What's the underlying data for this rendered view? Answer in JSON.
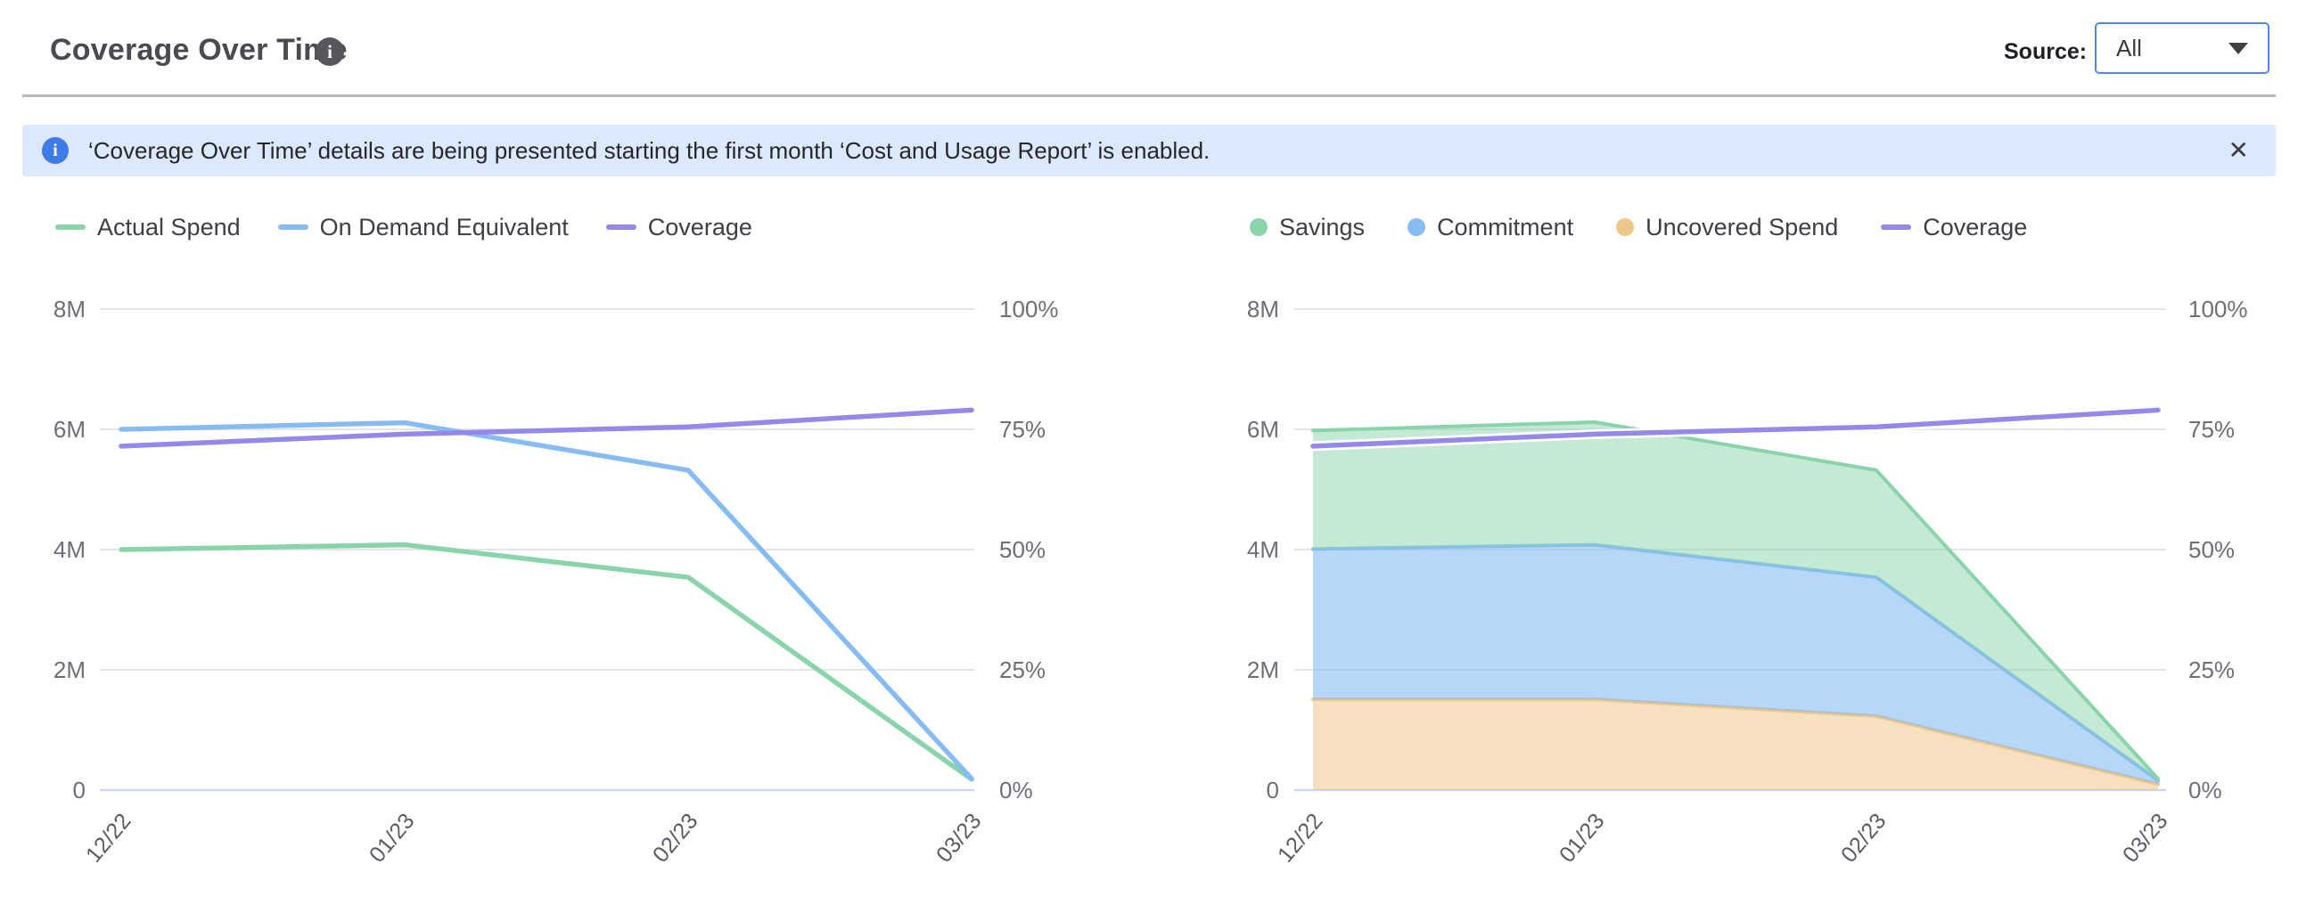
{
  "header": {
    "title": "Coverage Over Time",
    "info_icon": "i",
    "source_label": "Source:",
    "source_value": "All"
  },
  "banner": {
    "info_icon": "i",
    "text": "‘Coverage Over Time’ details are being presented starting the first month ‘Cost and Usage Report’ is enabled.",
    "close_icon": "✕"
  },
  "colors": {
    "green": "#8ad4ab",
    "blue": "#87bcf3",
    "purple": "#9488ea",
    "orange": "#eec68a",
    "banner_bg": "#dce9fc",
    "banner_icon_bg": "#3d7ce8",
    "dropdown_border": "#4e86f5",
    "gridline": "#e5e5e9",
    "axis_line": "#ccd7ee"
  },
  "chart_data": [
    {
      "type": "line",
      "title": "",
      "categories": [
        "12/22",
        "01/23",
        "02/23",
        "03/23"
      ],
      "series": [
        {
          "name": "Actual Spend",
          "axis": "left",
          "unit": "M",
          "color": "#8ad4ab",
          "values": [
            4.0,
            4.08,
            3.54,
            0.18
          ]
        },
        {
          "name": "On Demand Equivalent",
          "axis": "left",
          "unit": "M",
          "color": "#87bcf3",
          "values": [
            6.0,
            6.11,
            5.32,
            0.19
          ]
        },
        {
          "name": "Coverage",
          "axis": "right",
          "unit": "%",
          "color": "#9488ea",
          "values": [
            71.5,
            74,
            75.5,
            79
          ]
        }
      ],
      "y_left": {
        "ticks": [
          "8M",
          "6M",
          "4M",
          "2M",
          "0"
        ],
        "lim": [
          0,
          8
        ]
      },
      "y_right": {
        "ticks": [
          "100%",
          "75%",
          "50%",
          "25%",
          "0%"
        ],
        "lim": [
          0,
          100
        ]
      },
      "grid": "horizontal",
      "legend_position": "top",
      "legend": [
        {
          "label": "Actual Spend",
          "shape": "line",
          "color": "#8ad4ab"
        },
        {
          "label": "On Demand Equivalent",
          "shape": "line",
          "color": "#87bcf3"
        },
        {
          "label": "Coverage",
          "shape": "line",
          "color": "#9488ea"
        }
      ]
    },
    {
      "type": "area",
      "stacked": true,
      "title": "",
      "categories": [
        "12/22",
        "01/23",
        "02/23",
        "03/23"
      ],
      "series": [
        {
          "name": "Uncovered Spend",
          "axis": "left",
          "unit": "M",
          "color": "#eec68a",
          "fill_opacity": 0.55,
          "values": [
            1.51,
            1.51,
            1.23,
            0.1
          ]
        },
        {
          "name": "Commitment",
          "axis": "left",
          "unit": "M",
          "color": "#87bcf3",
          "fill_opacity": 0.6,
          "values": [
            2.5,
            2.57,
            2.31,
            0.06
          ]
        },
        {
          "name": "Savings",
          "axis": "left",
          "unit": "M",
          "color": "#8ad4ab",
          "fill_opacity": 0.5,
          "values": [
            1.97,
            2.04,
            1.78,
            0.03
          ]
        },
        {
          "name": "Coverage",
          "axis": "right",
          "unit": "%",
          "type": "line",
          "halo": true,
          "color": "#9488ea",
          "values": [
            71.5,
            74,
            75.5,
            79
          ]
        }
      ],
      "y_left": {
        "ticks": [
          "8M",
          "6M",
          "4M",
          "2M",
          "0"
        ],
        "lim": [
          0,
          8
        ]
      },
      "y_right": {
        "ticks": [
          "100%",
          "75%",
          "50%",
          "25%",
          "0%"
        ],
        "lim": [
          0,
          100
        ]
      },
      "grid": "horizontal",
      "legend_position": "top",
      "legend": [
        {
          "label": "Savings",
          "shape": "circle",
          "color": "#8ad4ab"
        },
        {
          "label": "Commitment",
          "shape": "circle",
          "color": "#87bcf3"
        },
        {
          "label": "Uncovered Spend",
          "shape": "circle",
          "color": "#eec68a"
        },
        {
          "label": "Coverage",
          "shape": "line",
          "color": "#9488ea"
        }
      ]
    }
  ]
}
